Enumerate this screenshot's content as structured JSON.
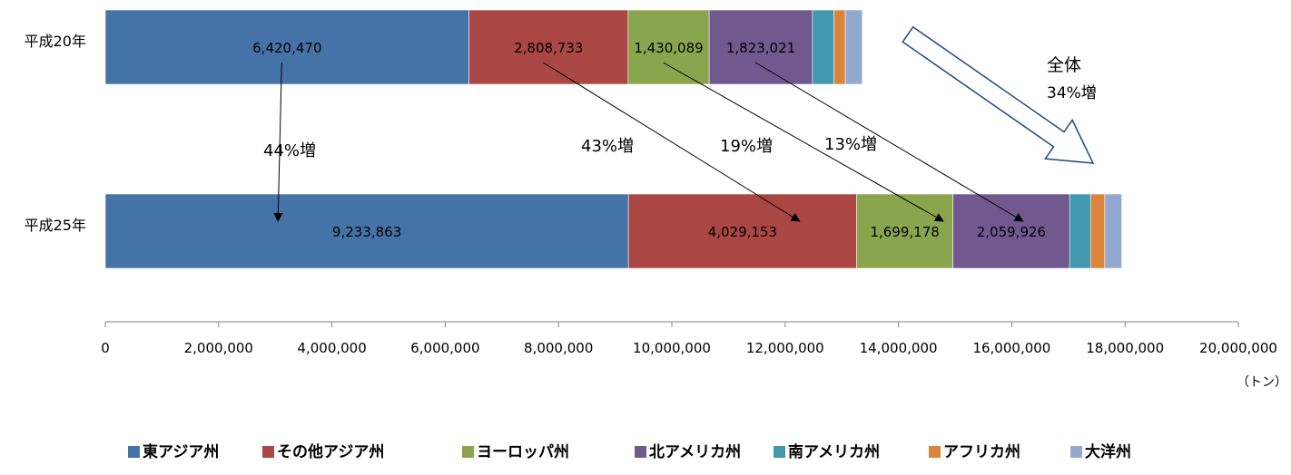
{
  "chart_data": {
    "type": "bar",
    "orientation": "horizontal",
    "stacked": true,
    "categories": [
      "平成20年",
      "平成25年"
    ],
    "series": [
      {
        "name": "東アジア州",
        "color": "#4572A7",
        "values": [
          6420470,
          9233863
        ],
        "labels": [
          "6,420,470",
          "9,233,863"
        ]
      },
      {
        "name": "その他アジア州",
        "color": "#AA4643",
        "values": [
          2808733,
          4029153
        ],
        "labels": [
          "2,808,733",
          "4,029,153"
        ]
      },
      {
        "name": "ヨーロッパ州",
        "color": "#89A54E",
        "values": [
          1430089,
          1699178
        ],
        "labels": [
          "1,430,089",
          "1,699,178"
        ]
      },
      {
        "name": "北アメリカ州",
        "color": "#71588F",
        "values": [
          1823021,
          2059926
        ],
        "labels": [
          "1,823,021",
          "2,059,926"
        ]
      },
      {
        "name": "南アメリカ州",
        "color": "#4198AF",
        "values": [
          380000,
          370000
        ],
        "labels": [
          "",
          ""
        ]
      },
      {
        "name": "アフリカ州",
        "color": "#DB843D",
        "values": [
          200000,
          250000
        ],
        "labels": [
          "",
          ""
        ]
      },
      {
        "name": "大洋州",
        "color": "#93A9CF",
        "values": [
          300000,
          300000
        ],
        "labels": [
          "",
          ""
        ]
      }
    ],
    "xlim": [
      0,
      20000000
    ],
    "xticks": [
      0,
      2000000,
      4000000,
      6000000,
      8000000,
      10000000,
      12000000,
      14000000,
      16000000,
      18000000,
      20000000
    ],
    "xtick_labels": [
      "0",
      "2,000,000",
      "4,000,000",
      "6,000,000",
      "8,000,000",
      "10,000,000",
      "12,000,000",
      "14,000,000",
      "16,000,000",
      "18,000,000",
      "20,000,000"
    ],
    "unit": "（トン）",
    "legend_position": "bottom",
    "grid": false,
    "growth_annotations": [
      {
        "series": "東アジア州",
        "text": "44%増"
      },
      {
        "series": "その他アジア州",
        "text": "43%増"
      },
      {
        "series": "ヨーロッパ州",
        "text": "19%増"
      },
      {
        "series": "北アメリカ州",
        "text": "13%増"
      }
    ],
    "total_annotation": {
      "line1": "全体",
      "line2": "34%増"
    }
  }
}
